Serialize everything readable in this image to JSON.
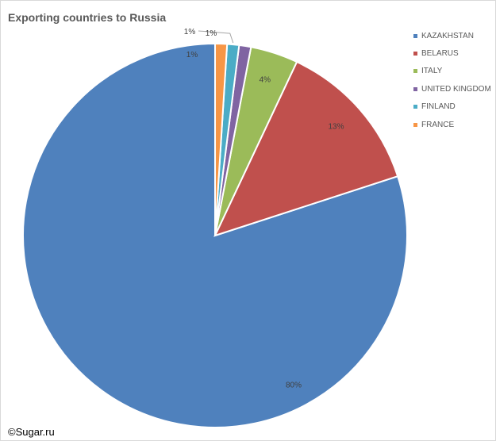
{
  "chart_data": {
    "type": "pie",
    "title": "Exporting countries to Russia",
    "categories": [
      "KAZAKHSTAN",
      "BELARUS",
      "ITALY",
      "UNITED KINGDOM",
      "FINLAND",
      "FRANCE"
    ],
    "values": [
      80,
      13,
      4,
      1,
      1,
      1
    ],
    "data_labels": [
      "80%",
      "13%",
      "4%",
      "1%",
      "1%",
      "1%"
    ],
    "colors": [
      "#4f81bd",
      "#c0504d",
      "#9bbb59",
      "#8064a2",
      "#4bacc6",
      "#f79646"
    ],
    "legend_position": "top-right",
    "start_angle": "12 o'clock",
    "direction": "counterclockwise"
  },
  "footer": {
    "copyright": "©Sugar.ru"
  }
}
